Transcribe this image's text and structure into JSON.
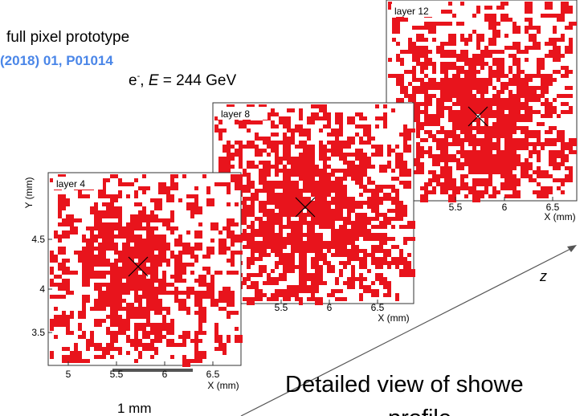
{
  "header": {
    "caption": "full pixel prototype",
    "reference": "(2018) 01, P01014",
    "beam": [
      "e",
      "-",
      ", ",
      "E",
      " = 244 GeV"
    ]
  },
  "panels": [
    {
      "label": "layer 12",
      "xticks": [
        "5.5",
        "6",
        "6.5"
      ],
      "xlabel": "X (mm)"
    },
    {
      "label": "layer 8",
      "xticks": [
        "5.5",
        "6",
        "6.5"
      ],
      "xlabel": "X (mm)"
    },
    {
      "label": "layer 4",
      "xticks": [
        "5",
        "5.5",
        "6",
        "6.5"
      ],
      "xlabel": "X (mm)",
      "ylabel": "Y (mm)",
      "yticks": [
        "4.5",
        "4",
        "3.5"
      ]
    }
  ],
  "scale_bar": "1 mm",
  "axis_label": "z",
  "footer": [
    "Detailed view of showe",
    "profile"
  ]
}
